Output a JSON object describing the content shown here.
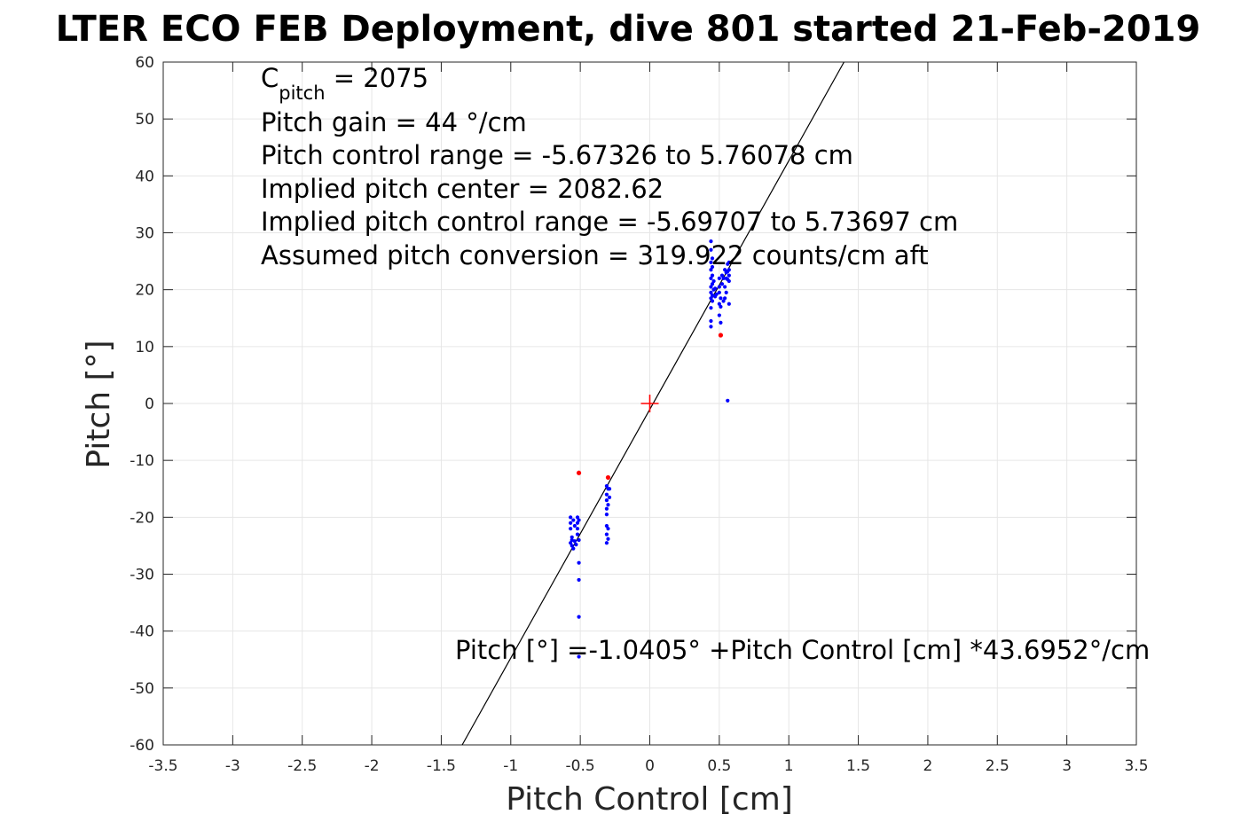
{
  "chart_data": {
    "type": "scatter",
    "title": "LTER ECO FEB Deployment, dive 801 started 21-Feb-2019",
    "xlabel": "Pitch Control [cm]",
    "ylabel": "Pitch [°]",
    "xlim": [
      -3.5,
      3.5
    ],
    "ylim": [
      -60,
      60
    ],
    "x_ticks": [
      -3.5,
      -3,
      -2.5,
      -2,
      -1.5,
      -1,
      -0.5,
      0,
      0.5,
      1,
      1.5,
      2,
      2.5,
      3,
      3.5
    ],
    "y_ticks": [
      -60,
      -50,
      -40,
      -30,
      -20,
      -10,
      0,
      10,
      20,
      30,
      40,
      50,
      60
    ],
    "grid": true,
    "annotations": {
      "c_pitch_prefix": "C",
      "c_pitch_sub": "pitch",
      "c_pitch_value": " = 2075",
      "pitch_gain": "Pitch gain = 44 °/cm",
      "control_range": "Pitch control range = -5.67326 to 5.76078 cm",
      "implied_center": "Implied pitch center = 2082.62",
      "implied_range": "Implied pitch control range = -5.69707 to 5.73697 cm",
      "conversion": "Assumed pitch conversion = 319.922 counts/cm aft",
      "fit_equation": "Pitch [°] =-1.0405° +Pitch Control [cm] *43.6952°/cm"
    },
    "fit_line": {
      "intercept": -1.0405,
      "slope": 43.6952,
      "color": "#000000"
    },
    "center_marker": {
      "x": 0,
      "y": 0,
      "color": "#ff0000"
    },
    "series": [
      {
        "color": "#0000ff",
        "points": [
          [
            0.44,
            28.5
          ],
          [
            0.44,
            27.0
          ],
          [
            0.45,
            25.5
          ],
          [
            0.44,
            24.8
          ],
          [
            0.45,
            24.0
          ],
          [
            0.44,
            23.5
          ],
          [
            0.45,
            22.5
          ],
          [
            0.44,
            22.0
          ],
          [
            0.45,
            21.0
          ],
          [
            0.44,
            20.5
          ],
          [
            0.46,
            20.0
          ],
          [
            0.44,
            19.5
          ],
          [
            0.45,
            19.0
          ],
          [
            0.47,
            18.8
          ],
          [
            0.44,
            18.5
          ],
          [
            0.45,
            18.0
          ],
          [
            0.46,
            21.5
          ],
          [
            0.47,
            20.2
          ],
          [
            0.48,
            19.2
          ],
          [
            0.44,
            16.8
          ],
          [
            0.44,
            14.5
          ],
          [
            0.44,
            13.5
          ],
          [
            0.5,
            22.0
          ],
          [
            0.5,
            20.5
          ],
          [
            0.5,
            19.5
          ],
          [
            0.51,
            18.5
          ],
          [
            0.5,
            17.5
          ],
          [
            0.51,
            17.0
          ],
          [
            0.5,
            15.5
          ],
          [
            0.51,
            14.2
          ],
          [
            0.52,
            22.5
          ],
          [
            0.52,
            21.0
          ],
          [
            0.53,
            22.0
          ],
          [
            0.54,
            23.5
          ],
          [
            0.55,
            23.0
          ],
          [
            0.55,
            22.0
          ],
          [
            0.56,
            24.5
          ],
          [
            0.56,
            23.2
          ],
          [
            0.56,
            21.8
          ],
          [
            0.57,
            24.8
          ],
          [
            0.57,
            23.5
          ],
          [
            0.57,
            22.5
          ],
          [
            0.57,
            21.5
          ],
          [
            0.54,
            20.5
          ],
          [
            0.55,
            19.5
          ],
          [
            0.53,
            18.0
          ],
          [
            0.54,
            18.5
          ],
          [
            0.57,
            17.5
          ],
          [
            0.56,
            0.5
          ],
          [
            -0.57,
            -20.0
          ],
          [
            -0.57,
            -21.0
          ],
          [
            -0.57,
            -22.0
          ],
          [
            -0.56,
            -23.5
          ],
          [
            -0.56,
            -24.0
          ],
          [
            -0.57,
            -24.5
          ],
          [
            -0.56,
            -25.0
          ],
          [
            -0.55,
            -25.5
          ],
          [
            -0.55,
            -20.5
          ],
          [
            -0.54,
            -21.5
          ],
          [
            -0.54,
            -24.2
          ],
          [
            -0.53,
            -24.8
          ],
          [
            -0.52,
            -20.0
          ],
          [
            -0.52,
            -21.0
          ],
          [
            -0.52,
            -22.0
          ],
          [
            -0.52,
            -23.0
          ],
          [
            -0.51,
            -24.0
          ],
          [
            -0.51,
            -20.5
          ],
          [
            -0.51,
            -28.0
          ],
          [
            -0.51,
            -31.0
          ],
          [
            -0.51,
            -37.5
          ],
          [
            -0.51,
            -44.5
          ],
          [
            -0.31,
            -14.5
          ],
          [
            -0.3,
            -15.0
          ],
          [
            -0.31,
            -16.0
          ],
          [
            -0.31,
            -17.0
          ],
          [
            -0.3,
            -17.8
          ],
          [
            -0.31,
            -18.5
          ],
          [
            -0.31,
            -19.5
          ],
          [
            -0.31,
            -21.5
          ],
          [
            -0.3,
            -22.0
          ],
          [
            -0.31,
            -23.0
          ],
          [
            -0.3,
            -23.8
          ],
          [
            -0.31,
            -24.5
          ],
          [
            -0.29,
            -16.5
          ],
          [
            -0.29,
            -15.0
          ]
        ]
      },
      {
        "color": "#ff0000",
        "points": [
          [
            0.51,
            12.0
          ],
          [
            -0.51,
            -12.2
          ],
          [
            -0.3,
            -13.0
          ]
        ]
      }
    ]
  }
}
